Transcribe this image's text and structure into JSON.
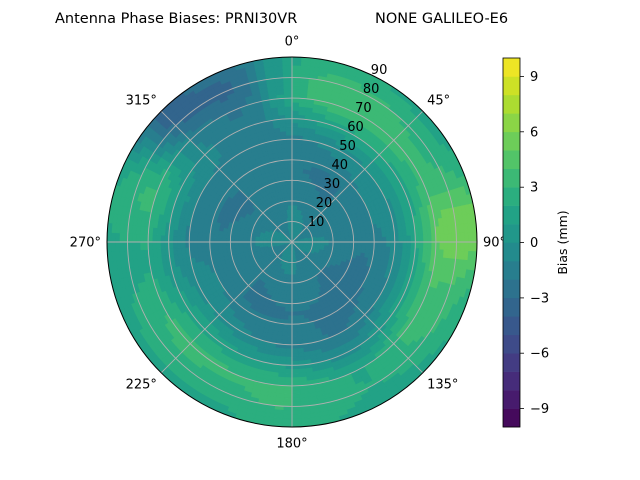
{
  "chart_data": {
    "type": "heatmap",
    "subtype": "polar-filled-contour",
    "title": "Antenna Phase Biases: PRNI30VR",
    "title_right": "NONE GALILEO-E6",
    "angular_ticks": [
      "0°",
      "45°",
      "90°",
      "135°",
      "180°",
      "225°",
      "270°",
      "315°"
    ],
    "angular_tick_values": [
      0,
      45,
      90,
      135,
      180,
      225,
      270,
      315
    ],
    "radial_ticks": [
      "10",
      "20",
      "30",
      "40",
      "50",
      "60",
      "70",
      "80",
      "90"
    ],
    "radial_tick_values": [
      10,
      20,
      30,
      40,
      50,
      60,
      70,
      80,
      90
    ],
    "rlim": [
      0,
      90
    ],
    "theta_zero": "top",
    "theta_direction": "clockwise",
    "grid": true,
    "colorbar": {
      "label": "Bias (mm)",
      "vmin": -10,
      "vmax": 10,
      "ticks": [
        "9",
        "6",
        "3",
        "0",
        "−3",
        "−6",
        "−9"
      ],
      "tick_values": [
        9,
        6,
        3,
        0,
        -3,
        -6,
        -9
      ],
      "levels": [
        -10,
        -9,
        -8,
        -7,
        -6,
        -5,
        -4,
        -3,
        -2,
        -1,
        0,
        1,
        2,
        3,
        4,
        5,
        6,
        7,
        8,
        9,
        10
      ],
      "colormap": "viridis"
    },
    "field_approx": {
      "description": "bias as function of radius (deg) and azimuth (deg)",
      "radial_profile": {
        "r": [
          0,
          20,
          35,
          50,
          60,
          70,
          80,
          90
        ],
        "bias": [
          -0.5,
          -1.5,
          -1.8,
          -0.5,
          1.5,
          3.5,
          3.0,
          2.0
        ]
      },
      "azimuthal_bumps": [
        {
          "theta": 50,
          "r": 70,
          "bias": 3.5
        },
        {
          "theta": 85,
          "r": 88,
          "bias": 5.5
        },
        {
          "theta": 315,
          "r": 82,
          "bias": -2.5
        },
        {
          "theta": 340,
          "r": 78,
          "bias": -2.0
        },
        {
          "theta": 265,
          "r": 75,
          "bias": 2.0
        },
        {
          "theta": 205,
          "r": 75,
          "bias": 2.5
        },
        {
          "theta": 150,
          "r": 55,
          "bias": -1.5
        }
      ]
    }
  },
  "colors": {
    "viridis": [
      "#440154",
      "#482475",
      "#414487",
      "#355f8d",
      "#2a788e",
      "#21918c",
      "#22a884",
      "#44bf70",
      "#7ad151",
      "#bddf26",
      "#fde725"
    ],
    "grid": "#b0b0b0",
    "axis": "#000000"
  }
}
